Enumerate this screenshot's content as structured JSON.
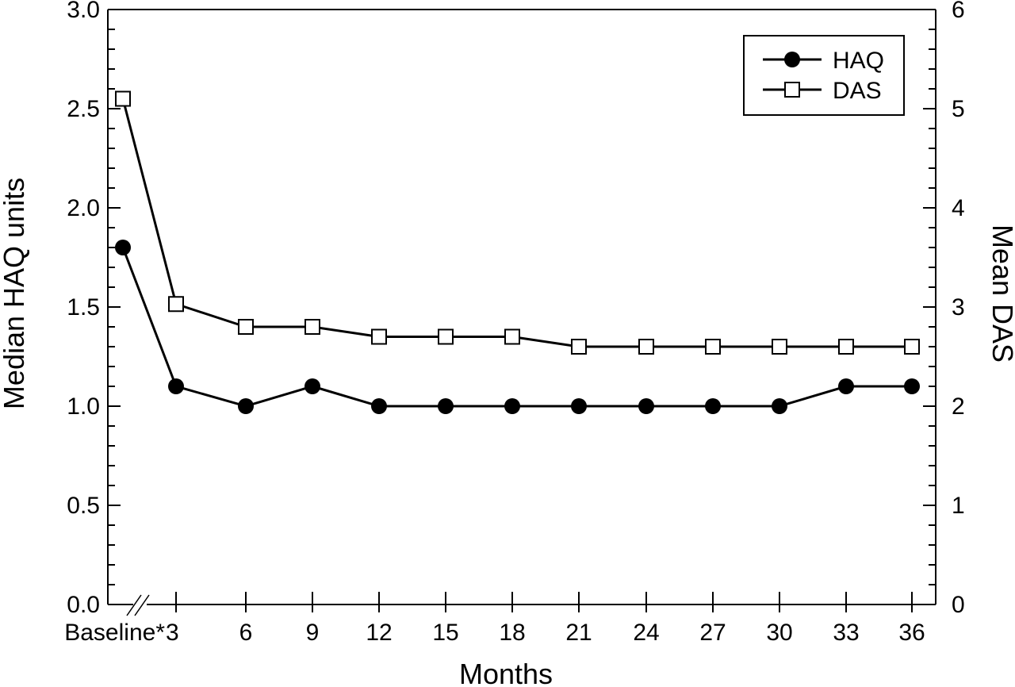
{
  "chart_data": {
    "type": "line",
    "xlabel": "Months",
    "ylabel_left": "Median HAQ units",
    "ylabel_right": "Mean DAS",
    "x_categories": [
      "Baseline*",
      "3",
      "6",
      "9",
      "12",
      "15",
      "18",
      "21",
      "24",
      "27",
      "30",
      "33",
      "36"
    ],
    "x_values": [
      0,
      3,
      6,
      9,
      12,
      15,
      18,
      21,
      24,
      27,
      30,
      33,
      36
    ],
    "ylim_left": [
      0,
      3.0
    ],
    "yticks_left": [
      "0.0",
      "0.5",
      "1.0",
      "1.5",
      "2.0",
      "2.5",
      "3.0"
    ],
    "ylim_right": [
      0,
      6
    ],
    "yticks_right": [
      "0",
      "1",
      "2",
      "3",
      "4",
      "5",
      "6"
    ],
    "axis_break": "between Baseline* and 3",
    "grid": false,
    "legend_position": "top-right",
    "series": [
      {
        "name": "HAQ",
        "axis": "left",
        "marker": "filled-circle",
        "values": [
          1.8,
          1.1,
          1.0,
          1.1,
          1.0,
          1.0,
          1.0,
          1.0,
          1.0,
          1.0,
          1.0,
          1.1,
          1.1
        ]
      },
      {
        "name": "DAS",
        "axis": "right",
        "marker": "open-square",
        "values": [
          5.1,
          3.03,
          2.8,
          2.8,
          2.7,
          2.7,
          2.7,
          2.6,
          2.6,
          2.6,
          2.6,
          2.6,
          2.6
        ]
      }
    ]
  }
}
